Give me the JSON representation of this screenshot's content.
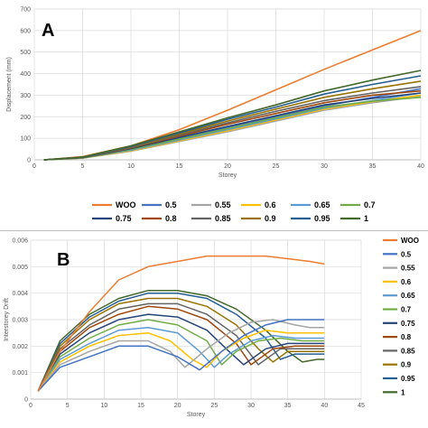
{
  "colors": {
    "WOO": "#ED7D31",
    "0.5": "#4472C4",
    "0.55": "#A5A5A5",
    "0.6": "#FFC000",
    "0.65": "#5B9BD5",
    "0.7": "#70AD47",
    "0.75": "#264478",
    "0.8": "#9E480E",
    "0.85": "#636363",
    "0.9": "#997300",
    "0.95": "#255E91",
    "1": "#43682B"
  },
  "chart_data": [
    {
      "type": "line",
      "panel_label": "A",
      "title": "",
      "xlabel": "Storey",
      "ylabel": "Displacement (mm)",
      "xlim": [
        0,
        40
      ],
      "ylim": [
        0,
        700
      ],
      "xticks": [
        0,
        5,
        10,
        15,
        20,
        25,
        30,
        35,
        40
      ],
      "yticks": [
        0,
        100,
        200,
        300,
        400,
        500,
        600,
        700
      ],
      "grid": true,
      "legend_position": "bottom",
      "x": [
        1,
        5,
        10,
        15,
        20,
        25,
        30,
        35,
        40
      ],
      "series": [
        {
          "name": "WOO",
          "values": [
            0,
            15,
            65,
            140,
            230,
            325,
            420,
            510,
            600
          ]
        },
        {
          "name": "0.5",
          "values": [
            0,
            10,
            50,
            100,
            150,
            200,
            250,
            290,
            330
          ]
        },
        {
          "name": "0.55",
          "values": [
            0,
            8,
            40,
            85,
            130,
            180,
            230,
            265,
            295
          ]
        },
        {
          "name": "0.6",
          "values": [
            0,
            8,
            42,
            88,
            135,
            185,
            235,
            270,
            300
          ]
        },
        {
          "name": "0.65",
          "values": [
            0,
            9,
            45,
            92,
            140,
            190,
            240,
            275,
            310
          ]
        },
        {
          "name": "0.7",
          "values": [
            0,
            9,
            48,
            96,
            145,
            195,
            245,
            272,
            290
          ]
        },
        {
          "name": "0.75",
          "values": [
            0,
            10,
            52,
            104,
            155,
            205,
            255,
            285,
            310
          ]
        },
        {
          "name": "0.8",
          "values": [
            0,
            11,
            55,
            110,
            165,
            215,
            265,
            300,
            320
          ]
        },
        {
          "name": "0.85",
          "values": [
            0,
            11,
            57,
            115,
            172,
            225,
            275,
            310,
            340
          ]
        },
        {
          "name": "0.9",
          "values": [
            0,
            12,
            60,
            120,
            180,
            235,
            290,
            330,
            365
          ]
        },
        {
          "name": "0.95",
          "values": [
            0,
            12,
            62,
            125,
            188,
            245,
            305,
            350,
            390
          ]
        },
        {
          "name": "1",
          "values": [
            0,
            13,
            65,
            130,
            195,
            255,
            320,
            370,
            415
          ]
        }
      ]
    },
    {
      "type": "line",
      "panel_label": "B",
      "title": "",
      "xlabel": "Storey",
      "ylabel": "Interstorey Drift",
      "xlim": [
        0,
        45
      ],
      "ylim": [
        0,
        0.006
      ],
      "xticks": [
        0,
        5,
        10,
        15,
        20,
        25,
        30,
        35,
        40,
        45
      ],
      "yticks": [
        "0",
        "0.001",
        "0.002",
        "0.003",
        "0.004",
        "0.005",
        "0.006"
      ],
      "grid": true,
      "legend_position": "right",
      "series": [
        {
          "name": "WOO",
          "x": [
            1,
            4,
            8,
            12,
            16,
            20,
            24,
            28,
            32,
            35,
            38,
            40
          ],
          "values": [
            0.0003,
            0.0018,
            0.0033,
            0.0045,
            0.005,
            0.0052,
            0.0054,
            0.0054,
            0.0054,
            0.0053,
            0.0052,
            0.0051
          ]
        },
        {
          "name": "0.5",
          "x": [
            1,
            4,
            8,
            12,
            16,
            20,
            23,
            26,
            29,
            32,
            35,
            38,
            40
          ],
          "values": [
            0.0003,
            0.0012,
            0.0016,
            0.002,
            0.002,
            0.0016,
            0.0011,
            0.0018,
            0.0024,
            0.0028,
            0.003,
            0.003,
            0.003
          ]
        },
        {
          "name": "0.55",
          "x": [
            1,
            4,
            8,
            12,
            16,
            19,
            21,
            24,
            27,
            30,
            33,
            36,
            38,
            40
          ],
          "values": [
            0.0003,
            0.0013,
            0.0018,
            0.0022,
            0.0022,
            0.0018,
            0.0012,
            0.0019,
            0.0025,
            0.0029,
            0.003,
            0.0028,
            0.0027,
            0.0027
          ]
        },
        {
          "name": "0.6",
          "x": [
            1,
            4,
            8,
            12,
            16,
            19,
            22,
            24,
            26,
            29,
            32,
            35,
            38,
            40
          ],
          "values": [
            0.0003,
            0.0014,
            0.002,
            0.0024,
            0.0025,
            0.0022,
            0.0015,
            0.0012,
            0.0018,
            0.0023,
            0.0026,
            0.0025,
            0.0025,
            0.0025
          ]
        },
        {
          "name": "0.65",
          "x": [
            1,
            4,
            8,
            12,
            16,
            20,
            23,
            25,
            27,
            30,
            33,
            36,
            40
          ],
          "values": [
            0.0003,
            0.0015,
            0.0021,
            0.0026,
            0.0027,
            0.0025,
            0.0018,
            0.0012,
            0.0017,
            0.0022,
            0.0024,
            0.0023,
            0.0023
          ]
        },
        {
          "name": "0.7",
          "x": [
            1,
            4,
            8,
            12,
            16,
            20,
            24,
            26,
            28,
            31,
            34,
            37,
            40
          ],
          "values": [
            0.0003,
            0.0016,
            0.0023,
            0.0028,
            0.003,
            0.0028,
            0.0022,
            0.0013,
            0.0018,
            0.0022,
            0.0023,
            0.0022,
            0.0022
          ]
        },
        {
          "name": "0.75",
          "x": [
            1,
            4,
            8,
            12,
            16,
            20,
            24,
            27,
            29,
            32,
            35,
            38,
            40
          ],
          "values": [
            0.0003,
            0.0017,
            0.0025,
            0.003,
            0.0032,
            0.0031,
            0.0026,
            0.0018,
            0.0013,
            0.0019,
            0.0021,
            0.0021,
            0.0021
          ]
        },
        {
          "name": "0.8",
          "x": [
            1,
            4,
            8,
            12,
            16,
            20,
            24,
            28,
            30,
            33,
            36,
            40
          ],
          "values": [
            0.0003,
            0.0018,
            0.0027,
            0.0032,
            0.0035,
            0.0034,
            0.003,
            0.0021,
            0.0013,
            0.0019,
            0.002,
            0.002
          ]
        },
        {
          "name": "0.85",
          "x": [
            1,
            4,
            8,
            12,
            16,
            20,
            24,
            28,
            31,
            34,
            37,
            40
          ],
          "values": [
            0.0003,
            0.0019,
            0.0028,
            0.0034,
            0.0036,
            0.0036,
            0.0032,
            0.0024,
            0.0013,
            0.0019,
            0.0019,
            0.0019
          ]
        },
        {
          "name": "0.9",
          "x": [
            1,
            4,
            8,
            12,
            16,
            20,
            24,
            28,
            31,
            33,
            35,
            38,
            40
          ],
          "values": [
            0.0003,
            0.002,
            0.003,
            0.0036,
            0.0038,
            0.0038,
            0.0035,
            0.0028,
            0.0019,
            0.0014,
            0.0018,
            0.0018,
            0.0018
          ]
        },
        {
          "name": "0.95",
          "x": [
            1,
            4,
            8,
            12,
            16,
            20,
            24,
            28,
            32,
            34,
            36,
            38,
            40
          ],
          "values": [
            0.0003,
            0.0021,
            0.0031,
            0.0037,
            0.004,
            0.004,
            0.0038,
            0.0032,
            0.0023,
            0.0015,
            0.0017,
            0.0017,
            0.0017
          ]
        },
        {
          "name": "1",
          "x": [
            1,
            4,
            8,
            12,
            16,
            20,
            24,
            28,
            32,
            35,
            37,
            39,
            40
          ],
          "values": [
            0.0003,
            0.0022,
            0.0032,
            0.0038,
            0.0041,
            0.0041,
            0.0039,
            0.0034,
            0.0026,
            0.0018,
            0.0014,
            0.0015,
            0.0015
          ]
        }
      ]
    }
  ]
}
